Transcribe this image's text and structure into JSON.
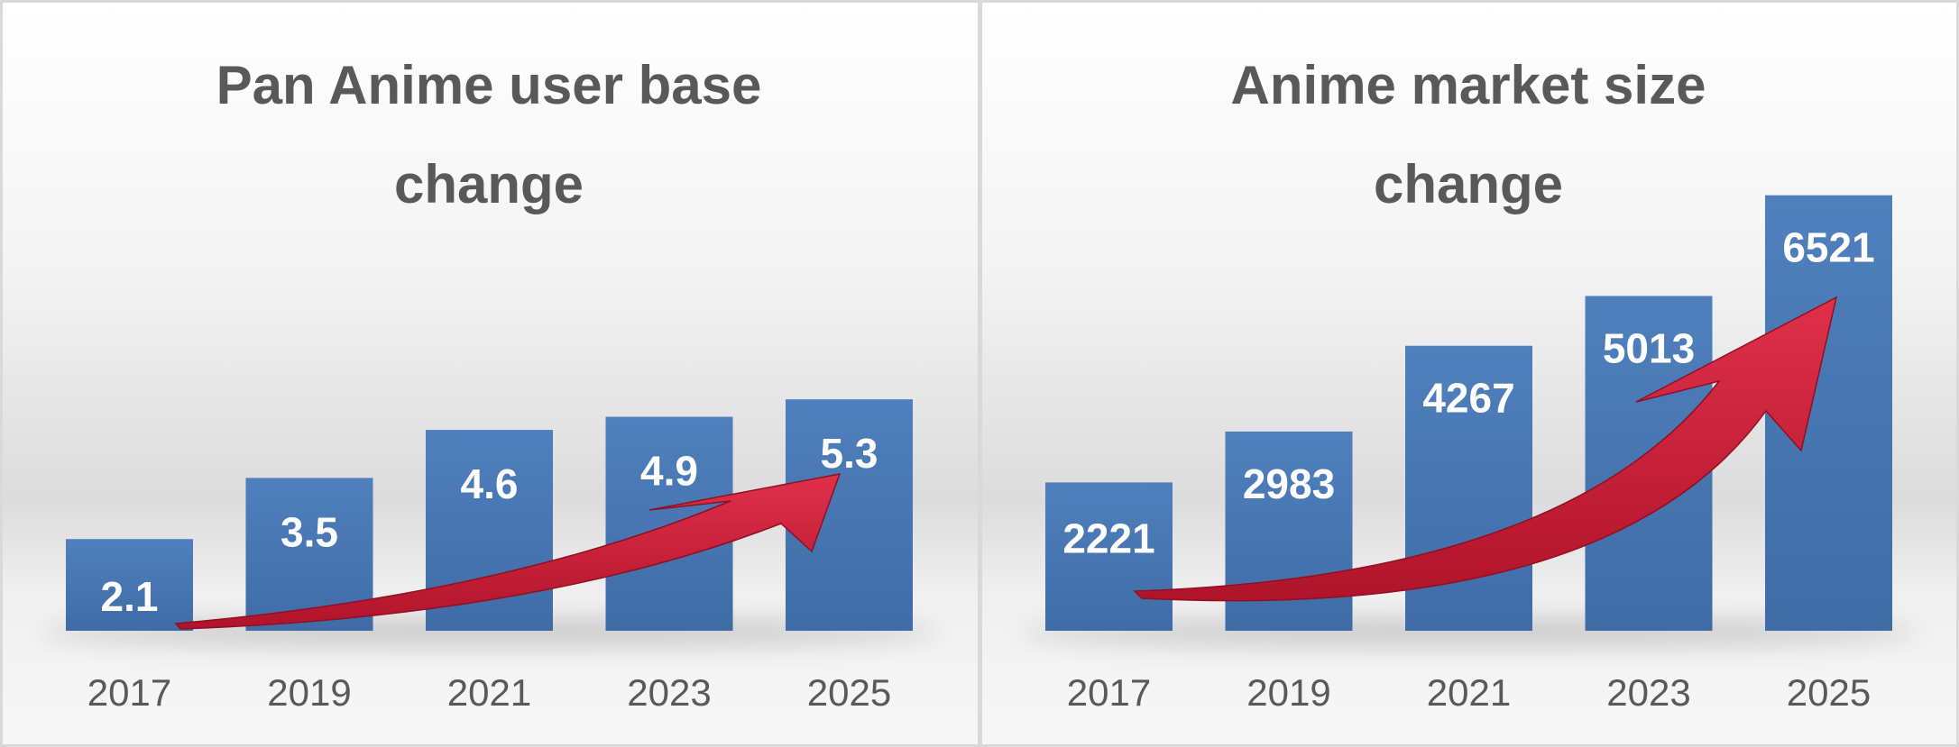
{
  "chart_data": [
    {
      "type": "bar",
      "title": "Pan Anime user base change",
      "title_lines": [
        "Pan Anime user base",
        "change"
      ],
      "categories": [
        "2017",
        "2019",
        "2021",
        "2023",
        "2025"
      ],
      "values": [
        2.1,
        3.5,
        4.6,
        4.9,
        5.3
      ],
      "data_labels": [
        "2.1",
        "3.5",
        "4.6",
        "4.9",
        "5.3"
      ],
      "xlabel": "",
      "ylabel": "",
      "ylim": [
        0,
        13
      ],
      "grid": false,
      "legend": "none",
      "bar_color": "#4a7ab8",
      "decoration": "red upward trend arrow"
    },
    {
      "type": "bar",
      "title": "Anime market size change",
      "title_lines": [
        "Anime market size",
        "change"
      ],
      "categories": [
        "2017",
        "2019",
        "2021",
        "2023",
        "2025"
      ],
      "values": [
        2221,
        2983,
        4267,
        5013,
        6521
      ],
      "data_labels": [
        "2221",
        "2983",
        "4267",
        "5013",
        "6521"
      ],
      "xlabel": "",
      "ylabel": "",
      "ylim": [
        0,
        8500
      ],
      "grid": false,
      "legend": "none",
      "bar_color": "#4a7ab8",
      "decoration": "red upward trend arrow"
    }
  ],
  "colors": {
    "bar": "#4a7ab8",
    "arrow": "#c8192e",
    "text": "#595959",
    "label": "#ffffff"
  }
}
